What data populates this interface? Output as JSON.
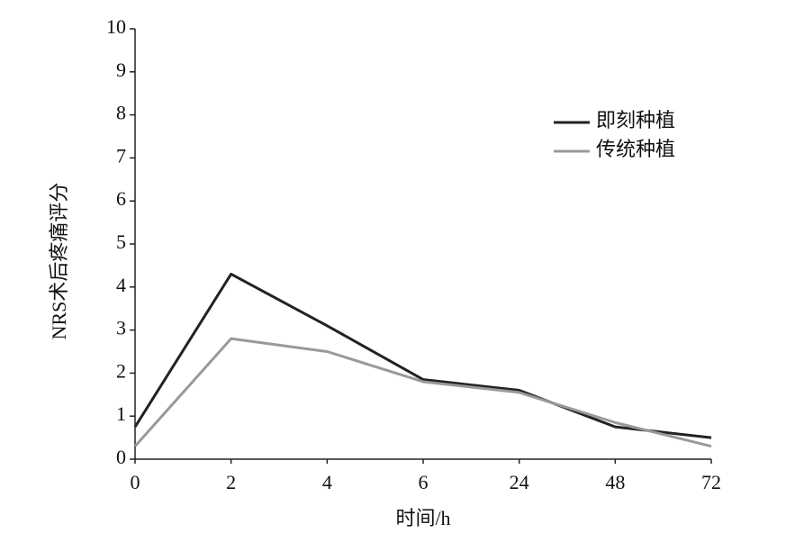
{
  "chart_data": {
    "type": "line",
    "x_label": "时间/h",
    "y_label": "NRS术后疼痛评分",
    "categories": [
      "0",
      "2",
      "4",
      "6",
      "24",
      "48",
      "72"
    ],
    "series": [
      {
        "name": "即刻种植",
        "color": "#222222",
        "values": [
          0.75,
          4.3,
          3.1,
          1.85,
          1.6,
          0.75,
          0.5
        ]
      },
      {
        "name": "传统种植",
        "color": "#999999",
        "values": [
          0.3,
          2.8,
          2.5,
          1.8,
          1.55,
          0.85,
          0.3
        ]
      }
    ],
    "ylim": [
      0,
      10
    ],
    "yticks": [
      0,
      1,
      2,
      3,
      4,
      5,
      6,
      7,
      8,
      9,
      10
    ],
    "legend": "upper right"
  }
}
